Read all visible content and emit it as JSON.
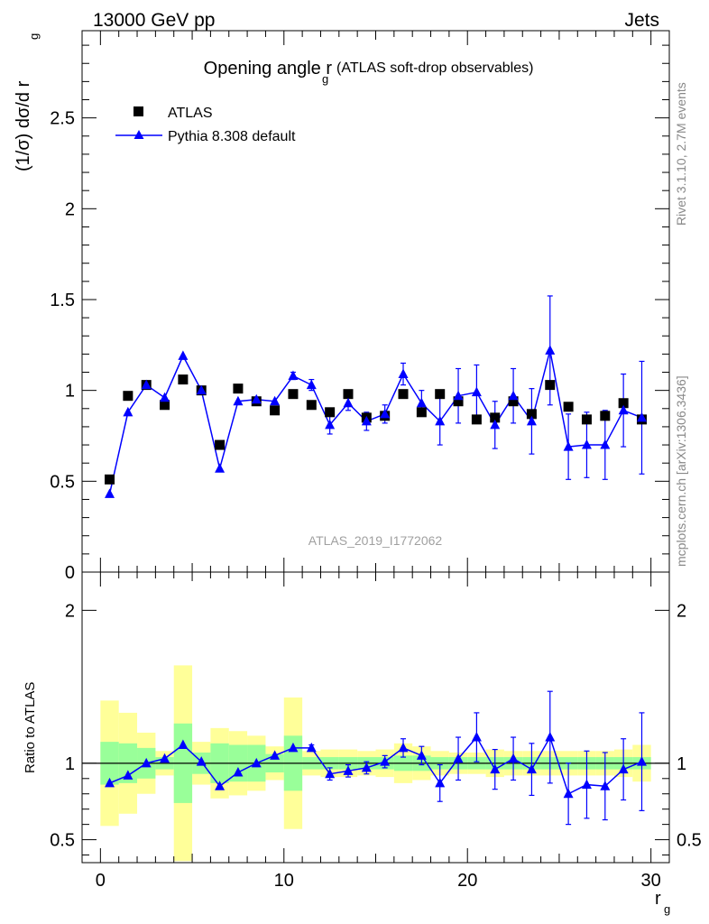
{
  "header": {
    "energy_label": "13000 GeV pp",
    "process_label": "Jets",
    "plot_title": "Opening angle r",
    "plot_title_sub": "g",
    "plot_title_suffix": "(ATLAS soft-drop observables)",
    "analysis_id": "ATLAS_2019_I1772062",
    "side_label_top": "Rivet 3.1.10,  2.7M events",
    "side_label_bottom": "mcplots.cern.ch [arXiv:1306.3436]"
  },
  "chart_data": [
    {
      "type": "scatter",
      "panel": "main",
      "ylabel": "(1/σ) dσ/d r",
      "ylabel_sub": "g",
      "xlim": [
        -1,
        31
      ],
      "ylim": [
        0,
        2.98
      ],
      "y_ticks": [
        "0",
        "0.5",
        "1",
        "1.5",
        "2",
        "2.5"
      ],
      "y_tick_values": [
        0,
        0.5,
        1,
        1.5,
        2,
        2.5
      ],
      "legend_position": "top-left",
      "colors": {
        "atlas": "#000000",
        "pythia": "#0000ff"
      },
      "series": [
        {
          "name": "ATLAS",
          "marker": "square",
          "x": [
            0.5,
            1.5,
            2.5,
            3.5,
            4.5,
            5.5,
            6.5,
            7.5,
            8.5,
            9.5,
            10.5,
            11.5,
            12.5,
            13.5,
            14.5,
            15.5,
            16.5,
            17.5,
            18.5,
            19.5,
            20.5,
            21.5,
            22.5,
            23.5,
            24.5,
            25.5,
            26.5,
            27.5,
            28.5,
            29.5
          ],
          "y": [
            0.51,
            0.97,
            1.03,
            0.92,
            1.06,
            1.0,
            0.7,
            1.01,
            0.94,
            0.89,
            0.98,
            0.92,
            0.88,
            0.98,
            0.85,
            0.86,
            0.98,
            0.88,
            0.98,
            0.94,
            0.84,
            0.85,
            0.94,
            0.87,
            1.03,
            0.91,
            0.84,
            0.86,
            0.93,
            0.84
          ]
        },
        {
          "name": "Pythia 8.308 default",
          "marker": "triangle",
          "x": [
            0.5,
            1.5,
            2.5,
            3.5,
            4.5,
            5.5,
            6.5,
            7.5,
            8.5,
            9.5,
            10.5,
            11.5,
            12.5,
            13.5,
            14.5,
            15.5,
            16.5,
            17.5,
            18.5,
            19.5,
            20.5,
            21.5,
            22.5,
            23.5,
            24.5,
            25.5,
            26.5,
            27.5,
            28.5,
            29.5
          ],
          "y": [
            0.43,
            0.88,
            1.03,
            0.96,
            1.19,
            1.0,
            0.57,
            0.94,
            0.95,
            0.94,
            1.08,
            1.03,
            0.81,
            0.93,
            0.83,
            0.87,
            1.09,
            0.93,
            0.83,
            0.97,
            0.99,
            0.81,
            0.97,
            0.83,
            1.22,
            0.69,
            0.7,
            0.7,
            0.89,
            0.85
          ],
          "err": [
            0,
            0,
            0,
            0,
            0,
            0,
            0,
            0,
            0,
            0,
            0.02,
            0.03,
            0.05,
            0.04,
            0.05,
            0.05,
            0.06,
            0.07,
            0.13,
            0.15,
            0.15,
            0.13,
            0.15,
            0.18,
            0.3,
            0.18,
            0.18,
            0.19,
            0.2,
            0.31
          ]
        }
      ]
    },
    {
      "type": "line",
      "panel": "ratio",
      "ylabel": "Ratio to ATLAS",
      "xlabel": "r",
      "xlabel_sub": "g",
      "xlim": [
        -1,
        31
      ],
      "ylim": [
        0.35,
        2.25
      ],
      "x_ticks": [
        "0",
        "10",
        "20",
        "30"
      ],
      "x_tick_values": [
        0,
        10,
        20,
        30
      ],
      "y_ticks": [
        "0.5",
        "1",
        "2"
      ],
      "y_tick_values": [
        0.5,
        1,
        2
      ],
      "reference_line": 1,
      "colors": {
        "band_inner": "#99ff99",
        "band_outer": "#ffff99",
        "line": "#0000ff"
      },
      "band_inner": {
        "lo": [
          0.86,
          0.87,
          0.9,
          0.96,
          0.74,
          0.93,
          0.87,
          0.88,
          0.88,
          0.94,
          0.82,
          0.96,
          0.96,
          0.96,
          0.96,
          0.96,
          0.95,
          0.95,
          0.96,
          0.96,
          0.96,
          0.96,
          0.96,
          0.96,
          0.96,
          0.96,
          0.96,
          0.96,
          0.96,
          0.96
        ],
        "hi": [
          1.14,
          1.13,
          1.1,
          1.04,
          1.26,
          1.07,
          1.13,
          1.12,
          1.12,
          1.06,
          1.18,
          1.04,
          1.04,
          1.04,
          1.04,
          1.04,
          1.05,
          1.05,
          1.04,
          1.04,
          1.04,
          1.04,
          1.04,
          1.04,
          1.04,
          1.04,
          1.04,
          1.04,
          1.04,
          1.04
        ]
      },
      "band_outer": {
        "lo": [
          0.59,
          0.67,
          0.8,
          0.92,
          0.36,
          0.86,
          0.77,
          0.79,
          0.82,
          0.89,
          0.57,
          0.92,
          0.91,
          0.91,
          0.92,
          0.91,
          0.87,
          0.89,
          0.92,
          0.93,
          0.93,
          0.91,
          0.92,
          0.92,
          0.92,
          0.92,
          0.92,
          0.92,
          0.91,
          0.88
        ],
        "hi": [
          1.41,
          1.33,
          1.2,
          1.08,
          1.64,
          1.14,
          1.23,
          1.21,
          1.18,
          1.11,
          1.43,
          1.08,
          1.09,
          1.09,
          1.08,
          1.09,
          1.13,
          1.11,
          1.08,
          1.07,
          1.07,
          1.09,
          1.08,
          1.08,
          1.08,
          1.08,
          1.08,
          1.08,
          1.09,
          1.12
        ]
      },
      "series": [
        {
          "name": "Pythia 8.308 default",
          "x": [
            0.5,
            1.5,
            2.5,
            3.5,
            4.5,
            5.5,
            6.5,
            7.5,
            8.5,
            9.5,
            10.5,
            11.5,
            12.5,
            13.5,
            14.5,
            15.5,
            16.5,
            17.5,
            18.5,
            19.5,
            20.5,
            21.5,
            22.5,
            23.5,
            24.5,
            25.5,
            26.5,
            27.5,
            28.5,
            29.5
          ],
          "y": [
            0.87,
            0.92,
            1.0,
            1.03,
            1.12,
            1.01,
            0.85,
            0.94,
            1.0,
            1.05,
            1.1,
            1.1,
            0.93,
            0.95,
            0.97,
            1.01,
            1.1,
            1.05,
            0.87,
            1.03,
            1.17,
            0.96,
            1.03,
            0.96,
            1.17,
            0.8,
            0.86,
            0.85,
            0.96,
            1.01
          ],
          "err": [
            0,
            0,
            0,
            0,
            0,
            0,
            0,
            0,
            0,
            0,
            0,
            0.02,
            0.04,
            0.04,
            0.04,
            0.04,
            0.06,
            0.06,
            0.12,
            0.14,
            0.16,
            0.13,
            0.14,
            0.17,
            0.3,
            0.2,
            0.22,
            0.22,
            0.2,
            0.32
          ]
        }
      ]
    }
  ]
}
